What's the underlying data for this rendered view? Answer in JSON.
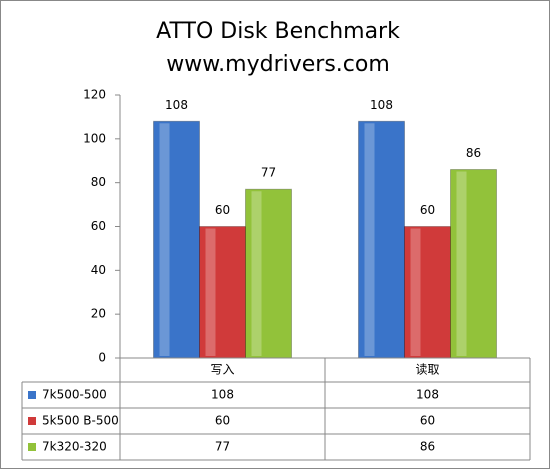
{
  "chart_data": {
    "type": "bar",
    "title": "ATTO Disk Benchmark",
    "subtitle": "www.mydrivers.com",
    "categories": [
      "写入",
      "读取"
    ],
    "series": [
      {
        "name": "7k500-500",
        "color": "#3a74c9",
        "values": [
          108,
          108
        ]
      },
      {
        "name": "5k500 B-500",
        "color": "#d03a3a",
        "values": [
          60,
          60
        ]
      },
      {
        "name": "7k320-320",
        "color": "#92c23a",
        "values": [
          77,
          86
        ]
      }
    ],
    "ylim": [
      0,
      120
    ],
    "yticks": [
      0,
      20,
      40,
      60,
      80,
      100,
      120
    ],
    "grid": false,
    "data_table": true
  }
}
